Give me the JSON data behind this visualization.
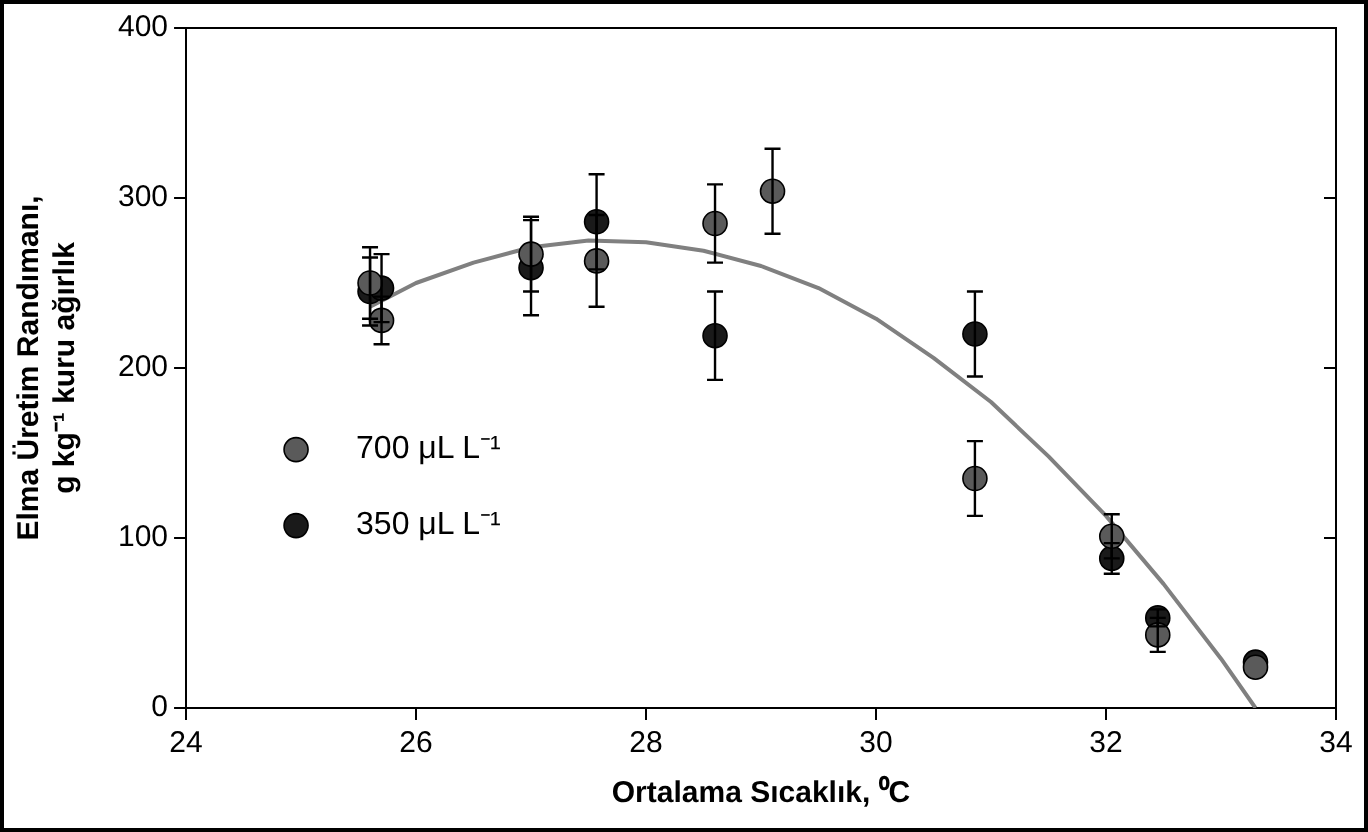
{
  "chart_data": {
    "type": "scatter",
    "xlabel": "Ortalama Sıcaklık, ⁰C",
    "ylabel": "Elma Üretim Randımanı,\ng kg⁻¹ kuru ağırlık",
    "xlim": [
      24,
      34
    ],
    "xticks": [
      24,
      26,
      28,
      30,
      32,
      34
    ],
    "ylim": [
      0,
      400
    ],
    "yticks": [
      0,
      100,
      200,
      300,
      400
    ],
    "grid": false,
    "legend": "left",
    "marker": "circle",
    "series": [
      {
        "name": "700 μL L⁻¹",
        "color": "#5a5a5a",
        "x": [
          25.6,
          25.7,
          27.0,
          27.57,
          28.6,
          29.1,
          30.86,
          32.05,
          32.45,
          33.3
        ],
        "values": [
          250,
          228,
          267,
          263,
          285,
          304,
          135,
          101,
          43,
          24
        ],
        "errors": [
          21,
          14,
          22,
          27,
          23,
          25,
          22,
          13,
          10,
          null
        ]
      },
      {
        "name": "350 μL L⁻¹",
        "color": "#1a1a1a",
        "x": [
          25.6,
          25.7,
          27.0,
          27.57,
          28.6,
          29.1,
          30.86,
          32.05,
          32.45,
          33.3
        ],
        "values": [
          245,
          247,
          259,
          286,
          219,
          null,
          220,
          88,
          53,
          27
        ],
        "errors": [
          20,
          20,
          28,
          28,
          26,
          null,
          25,
          9,
          5,
          null
        ]
      },
      {
        "type": "line",
        "color": "#808080",
        "line_style": "solid",
        "marker": "none",
        "x": [
          25.6,
          26,
          26.5,
          27,
          27.5,
          28,
          28.5,
          29,
          29.5,
          30,
          30.5,
          31,
          31.5,
          32,
          32.5,
          33,
          33.3
        ],
        "values": [
          236,
          250,
          262,
          271,
          275,
          274,
          269,
          260,
          247,
          229,
          206,
          180,
          148,
          113,
          73,
          29,
          0
        ]
      }
    ]
  }
}
